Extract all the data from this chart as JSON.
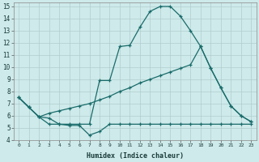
{
  "xlabel": "Humidex (Indice chaleur)",
  "bg_color": "#ceeaea",
  "grid_color": "#b0cccc",
  "line_color": "#1a6b6b",
  "xlim": [
    -0.5,
    23.5
  ],
  "ylim": [
    4,
    15.3
  ],
  "yticks": [
    4,
    5,
    6,
    7,
    8,
    9,
    10,
    11,
    12,
    13,
    14,
    15
  ],
  "xticks": [
    0,
    1,
    2,
    3,
    4,
    5,
    6,
    7,
    8,
    9,
    10,
    11,
    12,
    13,
    14,
    15,
    16,
    17,
    18,
    19,
    20,
    21,
    22,
    23
  ],
  "line1_x": [
    0,
    1,
    2,
    3,
    4,
    5,
    6,
    7,
    8,
    9,
    10,
    11,
    12,
    13,
    14,
    15,
    16,
    17,
    18,
    19,
    20,
    21,
    22,
    23
  ],
  "line1_y": [
    7.5,
    6.7,
    5.9,
    5.3,
    5.3,
    5.2,
    5.2,
    4.4,
    4.7,
    5.3,
    5.3,
    5.3,
    5.3,
    5.3,
    5.3,
    5.3,
    5.3,
    5.3,
    5.3,
    5.3,
    5.3,
    5.3,
    5.3,
    5.3
  ],
  "line2_x": [
    0,
    1,
    2,
    3,
    4,
    5,
    6,
    7,
    8,
    9,
    10,
    11,
    12,
    13,
    14,
    15,
    16,
    17,
    18,
    19,
    20,
    21,
    22,
    23
  ],
  "line2_y": [
    7.5,
    6.7,
    5.9,
    5.8,
    5.3,
    5.3,
    5.3,
    5.3,
    8.9,
    8.9,
    11.7,
    11.8,
    13.3,
    14.6,
    15.0,
    15.0,
    14.2,
    13.0,
    11.7,
    9.9,
    8.3,
    6.8,
    6.0,
    5.5
  ],
  "line3_x": [
    0,
    1,
    2,
    3,
    4,
    5,
    6,
    7,
    8,
    9,
    10,
    11,
    12,
    13,
    14,
    15,
    16,
    17,
    18,
    19,
    20,
    21,
    22,
    23
  ],
  "line3_y": [
    7.5,
    6.7,
    5.9,
    6.2,
    6.4,
    6.6,
    6.8,
    7.0,
    7.3,
    7.6,
    8.0,
    8.3,
    8.7,
    9.0,
    9.3,
    9.6,
    9.9,
    10.2,
    11.7,
    9.9,
    8.3,
    6.8,
    6.0,
    5.5
  ]
}
